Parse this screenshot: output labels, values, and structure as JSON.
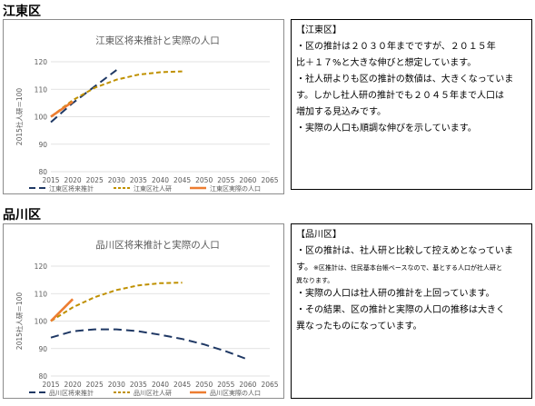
{
  "sections": [
    {
      "heading": "江東区",
      "note": {
        "heading": "【江東区】",
        "lines": [
          "・区の推計は２０３０年までですが、２０１５年",
          "比＋１７%と大きな伸びと想定しています。",
          "・社人研よりも区の推計の数値は、大きくなっていま",
          "す。しかし社人研の推計でも２０４５年まで人口は",
          "増加する見込みです。",
          "・実際の人口も順調な伸びを示しています。"
        ],
        "small_lines": []
      }
    },
    {
      "heading": "品川区",
      "note": {
        "heading": "【品川区】",
        "lines": [
          "・区の推計は、社人研と比較して控えめとなっていま",
          "す。"
        ],
        "small_lines": [
          "※区推計は、住民基本台帳ベースなので、基とする人口が社人研と",
          "異なります。"
        ],
        "lines_after": [
          "・実際の人口は社人研の推計を上回っています。",
          "・その結果、区の推計と実際の人口の推移は大きく",
          "異なったものになっています。"
        ]
      }
    }
  ],
  "chart_data": [
    {
      "type": "line",
      "title": "江東区将来推計と実際の人口",
      "ylabel": "2015社人研＝100",
      "xlabel": "",
      "x_ticks": [
        2015,
        2020,
        2025,
        2030,
        2035,
        2040,
        2045,
        2050,
        2055,
        2060,
        2065
      ],
      "y_ticks": [
        80,
        90,
        100,
        110,
        120
      ],
      "xlim": [
        2015,
        2065
      ],
      "ylim": [
        80,
        120
      ],
      "grid": true,
      "legend_position": "bottom",
      "series": [
        {
          "name": "江東区将来推計",
          "color": "#1f3864",
          "dash": "long-dash",
          "x": [
            2015,
            2020,
            2025,
            2030
          ],
          "y": [
            98,
            105,
            111,
            117
          ]
        },
        {
          "name": "江東区社人研",
          "color": "#bf9000",
          "dash": "short-dash",
          "x": [
            2015,
            2020,
            2025,
            2030,
            2035,
            2040,
            2045
          ],
          "y": [
            100,
            106,
            110.5,
            113.5,
            115.3,
            116.2,
            116.5
          ]
        },
        {
          "name": "江東区実際の人口",
          "color": "#ed7d31",
          "dash": "solid",
          "x": [
            2015,
            2020
          ],
          "y": [
            100,
            105.5
          ]
        }
      ]
    },
    {
      "type": "line",
      "title": "品川区将来推計と実際の人口",
      "ylabel": "2015社人研＝100",
      "xlabel": "",
      "x_ticks": [
        2015,
        2020,
        2025,
        2030,
        2035,
        2040,
        2045,
        2050,
        2055,
        2060,
        2065
      ],
      "y_ticks": [
        80,
        90,
        100,
        110,
        120
      ],
      "xlim": [
        2015,
        2065
      ],
      "ylim": [
        80,
        120
      ],
      "grid": true,
      "legend_position": "bottom",
      "series": [
        {
          "name": "品川区将来推計",
          "color": "#1f3864",
          "dash": "long-dash",
          "x": [
            2015,
            2020,
            2025,
            2030,
            2035,
            2040,
            2045,
            2050,
            2055,
            2060
          ],
          "y": [
            94,
            96.3,
            97,
            97,
            96.3,
            95,
            93.5,
            91.5,
            89,
            86
          ]
        },
        {
          "name": "品川区社人研",
          "color": "#bf9000",
          "dash": "short-dash",
          "x": [
            2015,
            2020,
            2025,
            2030,
            2035,
            2040,
            2045
          ],
          "y": [
            100,
            105,
            108.7,
            111.3,
            113,
            113.8,
            114
          ]
        },
        {
          "name": "品川区実際の人口",
          "color": "#ed7d31",
          "dash": "solid",
          "x": [
            2015,
            2020
          ],
          "y": [
            100,
            108
          ]
        }
      ]
    }
  ]
}
